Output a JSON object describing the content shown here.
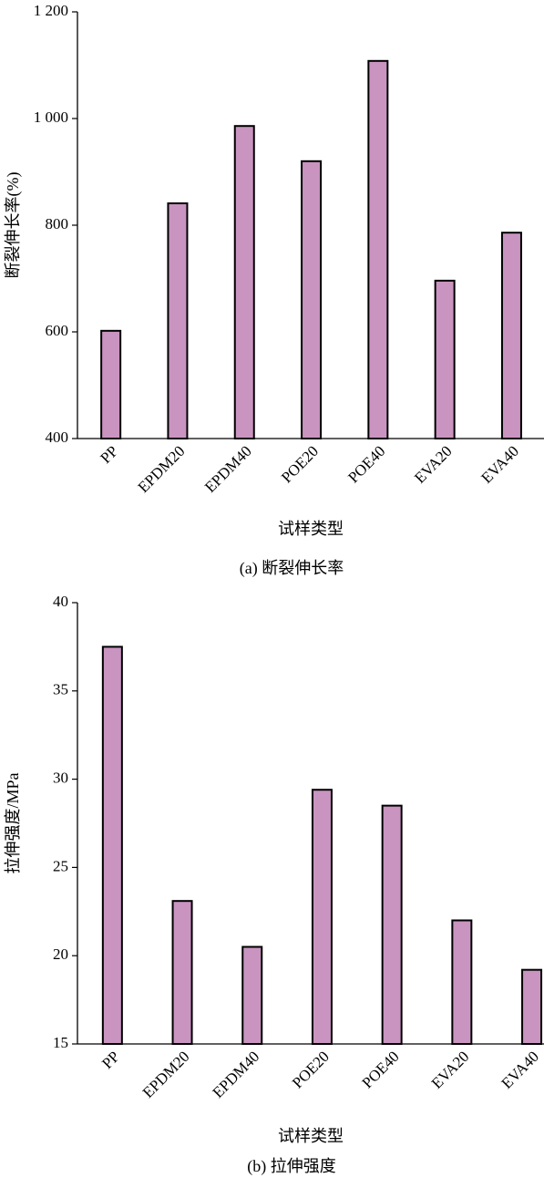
{
  "chart_data": [
    {
      "type": "bar",
      "caption": "(a) 断裂伸长率",
      "x_label": "试样类型",
      "y_label": "断裂伸长率(%)",
      "categories": [
        "PP",
        "EPDM20",
        "EPDM40",
        "POE20",
        "POE40",
        "EVA20",
        "EVA40"
      ],
      "values": [
        602,
        841,
        986,
        920,
        1108,
        696,
        786
      ],
      "color": "#c994c0",
      "ylim": [
        400,
        1200
      ],
      "yticks": [
        400,
        600,
        800,
        {
          "value": 1000,
          "label": "1 000"
        },
        {
          "value": 1200,
          "label": "1 200"
        }
      ]
    },
    {
      "type": "bar",
      "caption": "(b) 拉伸强度",
      "x_label": "试样类型",
      "y_label": "拉伸强度/MPa",
      "categories": [
        "PP",
        "EPDM20",
        "EPDM40",
        "POE20",
        "POE40",
        "EVA20",
        "EVA40"
      ],
      "values": [
        37.5,
        23.1,
        20.5,
        29.4,
        28.5,
        22.0,
        19.2
      ],
      "color": "#c994c0",
      "ylim": [
        15,
        40
      ],
      "yticks": [
        15,
        20,
        25,
        30,
        35,
        40
      ]
    }
  ]
}
